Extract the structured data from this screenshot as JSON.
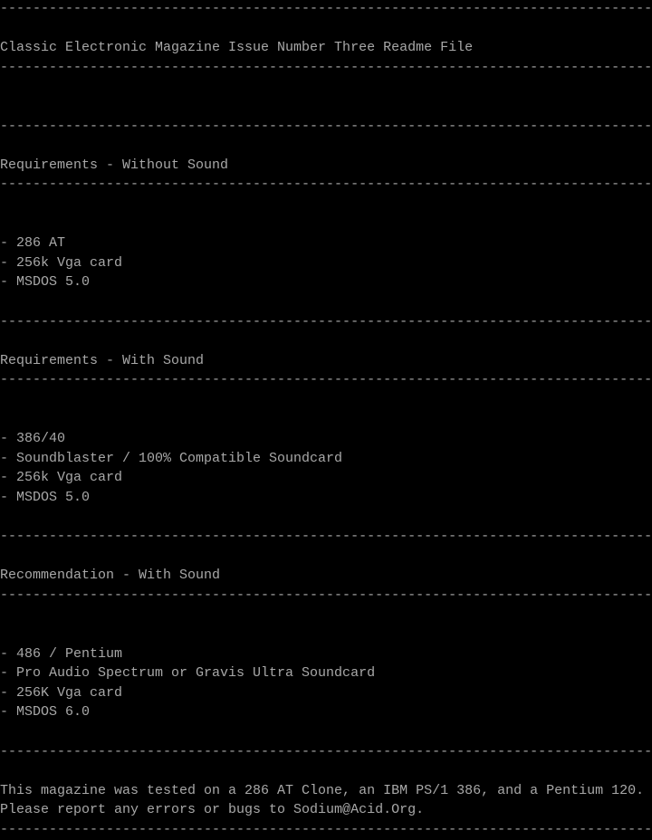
{
  "divider": "--------------------------------------------------------------------------------",
  "title": "Classic Electronic Magazine Issue Number Three Readme File",
  "sections": [
    {
      "heading": "Requirements - Without Sound",
      "items": [
        "- 286 AT",
        "- 256k Vga card",
        "- MSDOS 5.0"
      ]
    },
    {
      "heading": "Requirements - With Sound",
      "items": [
        "- 386/40",
        "- Soundblaster / 100% Compatible Soundcard",
        "- 256k Vga card",
        "- MSDOS 5.0"
      ]
    },
    {
      "heading": "Recommendation - With Sound",
      "items": [
        "- 486 / Pentium",
        "- Pro Audio Spectrum or Gravis Ultra Soundcard",
        "- 256K Vga card",
        "- MSDOS 6.0"
      ]
    }
  ],
  "footer": [
    "This magazine was tested on a 286 AT Clone, an IBM PS/1 386, and a Pentium 120.",
    "Please report any errors or bugs to Sodium@Acid.Org."
  ]
}
